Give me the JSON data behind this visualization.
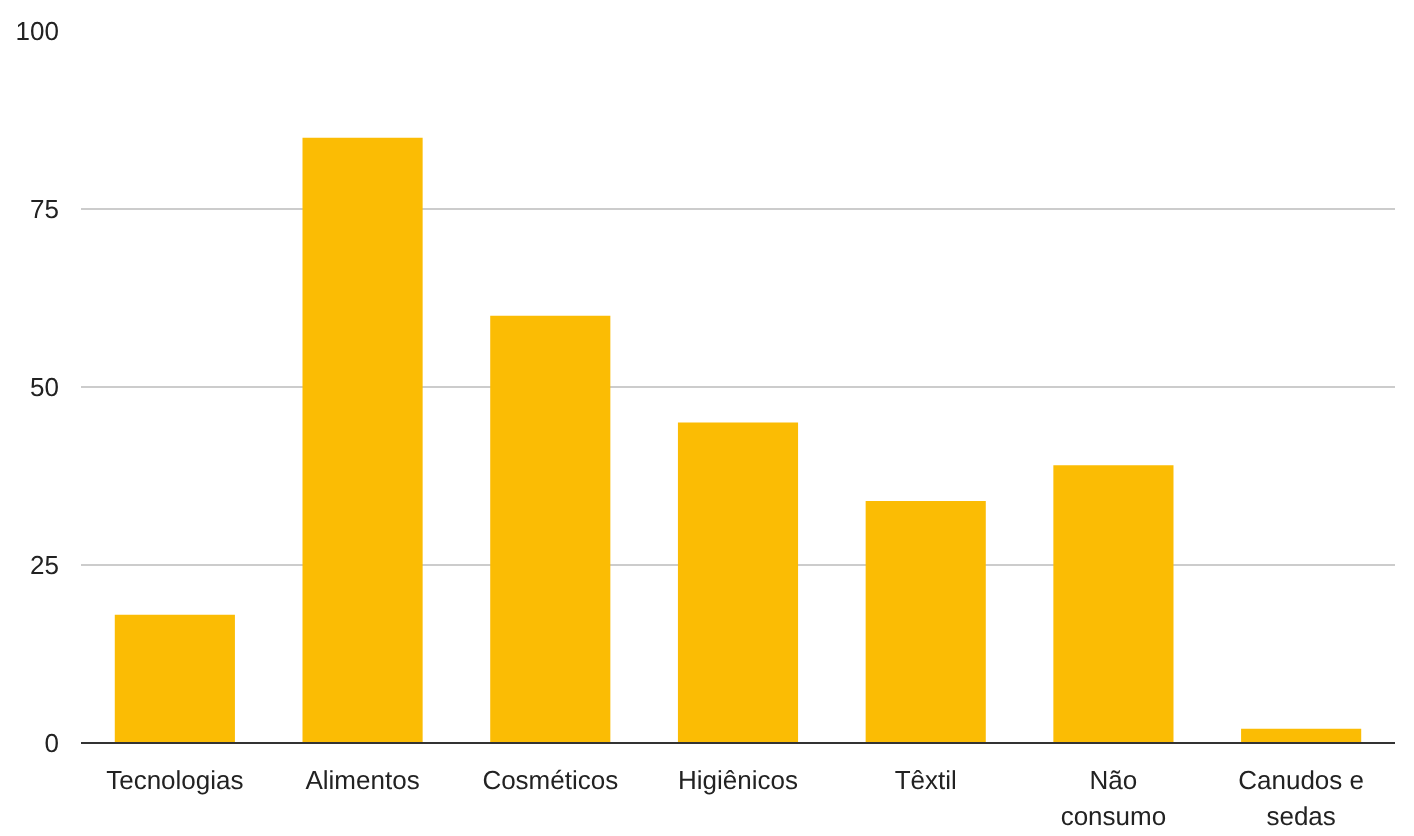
{
  "chart_data": {
    "type": "bar",
    "categories": [
      "Tecnologias",
      "Alimentos",
      "Cosméticos",
      "Higiênicos",
      "Têxtil",
      "Não consumo",
      "Canudos e sedas"
    ],
    "values": [
      18,
      85,
      60,
      45,
      34,
      39,
      2
    ],
    "color": "#fbbc04",
    "ylim": [
      0,
      100
    ],
    "yticks": [
      0,
      25,
      50,
      75,
      100
    ],
    "grid": "y"
  }
}
